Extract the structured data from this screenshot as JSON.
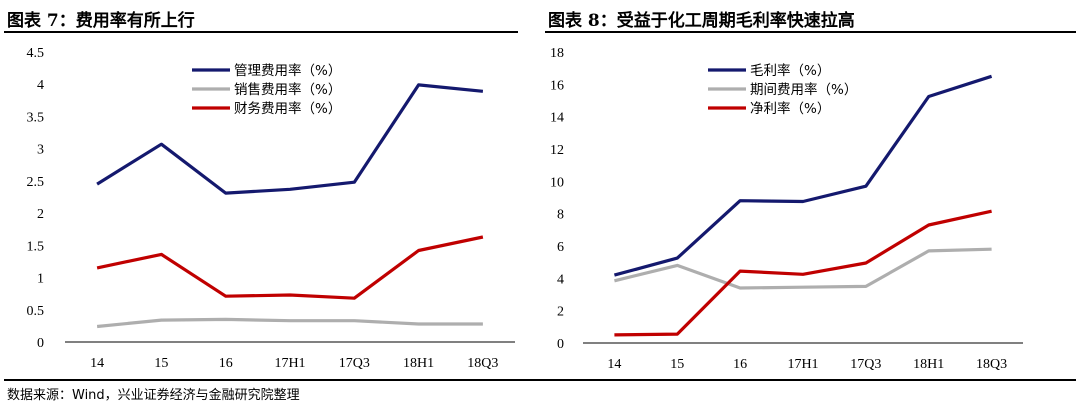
{
  "left_title": "图表 7：费用率有所上行",
  "right_title": "图表 8：受益于化工周期毛利率快速拉高",
  "source": "数据来源：Wind，兴业证券经济与金融研究院整理",
  "chart_data": [
    {
      "type": "line",
      "title": "图表 7：费用率有所上行",
      "categories": [
        "14",
        "15",
        "16",
        "17H1",
        "17Q3",
        "18H1",
        "18Q3"
      ],
      "ylim": [
        0,
        4.5
      ],
      "yticks": [
        "0",
        "0.5",
        "1",
        "1.5",
        "2",
        "2.5",
        "3",
        "3.5",
        "4",
        "4.5"
      ],
      "legend_position": "top-center",
      "grid": false,
      "series": [
        {
          "name": "管理费用率（%）",
          "color": "#14196e",
          "values": [
            2.45,
            3.07,
            2.31,
            2.37,
            2.48,
            3.99,
            3.89
          ]
        },
        {
          "name": "销售费用率（%）",
          "color": "#aeaeae",
          "values": [
            0.24,
            0.34,
            0.35,
            0.33,
            0.33,
            0.28,
            0.28
          ]
        },
        {
          "name": "财务费用率（%）",
          "color": "#c00000",
          "values": [
            1.15,
            1.36,
            0.71,
            0.73,
            0.68,
            1.42,
            1.63
          ]
        }
      ]
    },
    {
      "type": "line",
      "title": "图表 8：受益于化工周期毛利率快速拉高",
      "categories": [
        "14",
        "15",
        "16",
        "17H1",
        "17Q3",
        "18H1",
        "18Q3"
      ],
      "ylim": [
        0,
        18
      ],
      "yticks": [
        "0",
        "2",
        "4",
        "6",
        "8",
        "10",
        "12",
        "14",
        "16",
        "18"
      ],
      "legend_position": "top-center",
      "grid": false,
      "series": [
        {
          "name": "毛利率（%）",
          "color": "#14196e",
          "values": [
            4.2,
            5.25,
            8.8,
            8.75,
            9.7,
            15.25,
            16.5
          ]
        },
        {
          "name": "期间费用率（%）",
          "color": "#aeaeae",
          "values": [
            3.85,
            4.8,
            3.4,
            3.45,
            3.5,
            5.7,
            5.8
          ]
        },
        {
          "name": "净利率（%）",
          "color": "#c00000",
          "values": [
            0.5,
            0.55,
            4.45,
            4.25,
            4.95,
            7.3,
            8.15
          ]
        }
      ]
    }
  ]
}
